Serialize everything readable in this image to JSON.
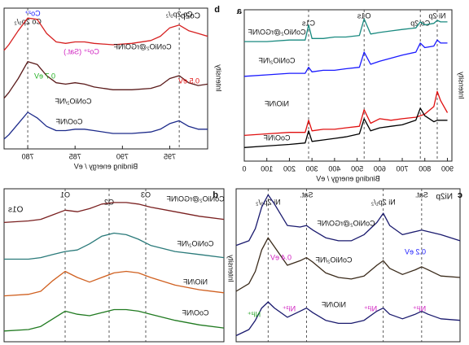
{
  "chart_data": [
    {
      "type": "line",
      "panel_label": "a",
      "xlabel": "Binding energy / eV",
      "ylabel": "Intensity",
      "x": [
        900,
        870,
        855,
        840,
        800,
        780,
        760,
        700,
        650,
        600,
        560,
        531,
        510,
        450,
        400,
        350,
        300,
        285,
        270,
        200,
        100,
        0
      ],
      "xlim": [
        920,
        0
      ],
      "xticks": [
        900,
        800,
        700,
        600,
        500,
        400,
        300,
        200,
        100,
        0
      ],
      "ylim": [
        0,
        100
      ],
      "series": [
        {
          "name": "CoNiO₂@rGO/NF",
          "color": "#1a8a80",
          "values": [
            92,
            92,
            93,
            91,
            90,
            92,
            88,
            87,
            86,
            85,
            84,
            94,
            83,
            82,
            82,
            81,
            81,
            90,
            80,
            80,
            79,
            79
          ]
        },
        {
          "name": "CoNiO₂/NF",
          "color": "#1a1aff",
          "values": [
            78,
            78,
            80,
            76,
            75,
            78,
            72,
            70,
            68,
            66,
            64,
            72,
            62,
            61,
            60,
            60,
            59,
            62,
            58,
            58,
            57,
            56
          ]
        },
        {
          "name": "NiO/NF",
          "color": "#e01010",
          "values": [
            32,
            40,
            46,
            36,
            31,
            30,
            29,
            28,
            27,
            28,
            25,
            34,
            23,
            22,
            21,
            21,
            20,
            27,
            19,
            19,
            18,
            17
          ]
        },
        {
          "name": "CoO/NF",
          "color": "#000000",
          "values": [
            27,
            27,
            27,
            26,
            30,
            35,
            27,
            24,
            23,
            22,
            20,
            28,
            18,
            16,
            15,
            14,
            13,
            20,
            12,
            11,
            10,
            9
          ]
        }
      ],
      "annotations": [
        {
          "x": 855,
          "label": "Ni 2p"
        },
        {
          "x": 780,
          "label": "Co 2p"
        },
        {
          "x": 531,
          "label": "O1s"
        },
        {
          "x": 285,
          "label": "C1s"
        }
      ]
    },
    {
      "type": "line",
      "panel_label": "b",
      "title": "Co2p",
      "xlabel": "Binding energy / eV",
      "ylabel": "Intensity",
      "x": [
        799,
        798,
        797,
        796,
        795,
        794,
        793,
        791,
        789,
        787,
        786,
        785,
        784,
        783,
        782,
        781,
        780,
        779,
        778,
        777.5
      ],
      "xlim": [
        799,
        777.5
      ],
      "xticks": [
        795,
        790,
        785,
        780
      ],
      "ylim": [
        0,
        100
      ],
      "series": [
        {
          "name": "CoNiO₂@rGO/NF",
          "color": "#d62020",
          "values": [
            80,
            82,
            84,
            88,
            86,
            80,
            77,
            75,
            74,
            75,
            76,
            76,
            75,
            76,
            82,
            92,
            93,
            84,
            74,
            70
          ]
        },
        {
          "name": "CoNiO₂/NF",
          "color": "#5a1a1a",
          "values": [
            46,
            45,
            47,
            52,
            50,
            45,
            43,
            42,
            42,
            44,
            46,
            47,
            46,
            47,
            52,
            60,
            62,
            50,
            40,
            36
          ]
        },
        {
          "name": "CoO/NF",
          "color": "#1c2a8a",
          "values": [
            14,
            14,
            16,
            20,
            18,
            14,
            12,
            11,
            11,
            13,
            14,
            14,
            13,
            13,
            16,
            22,
            26,
            18,
            10,
            7
          ]
        }
      ],
      "annotations": [
        {
          "x": 796,
          "label": "Co 2p₁/₂"
        },
        {
          "x": 780,
          "label": "Co 2p₃/₂"
        }
      ],
      "notes": [
        {
          "text": "Co²⁺",
          "color": "#1a1aff"
        },
        {
          "text": "Co²⁺ (Sat.)",
          "color": "#d020c0"
        },
        {
          "text": "0.7 eV",
          "color": "#20b020"
        },
        {
          "text": "0.5 eV",
          "color": "#e01010"
        }
      ]
    },
    {
      "type": "line",
      "panel_label": "c",
      "title": "Ni2p",
      "x": [
        885,
        882,
        880,
        879,
        878,
        876,
        874,
        873,
        872,
        870,
        868,
        866,
        864,
        862,
        861,
        860,
        858,
        856,
        855,
        854,
        853,
        852,
        850
      ],
      "xlim": [
        885,
        850
      ],
      "ylim": [
        0,
        100
      ],
      "series": [
        {
          "name": "CoNiO₂@rGO/NF",
          "color": "#1a1a6e",
          "values": [
            66,
            70,
            72,
            73,
            72,
            70,
            76,
            84,
            78,
            70,
            66,
            66,
            68,
            73,
            76,
            75,
            76,
            90,
            96,
            88,
            74,
            66,
            63
          ]
        },
        {
          "name": "CoNiO₂/NF",
          "color": "#3a2a1a",
          "values": [
            42,
            43,
            47,
            49,
            47,
            44,
            48,
            53,
            50,
            43,
            41,
            42,
            45,
            52,
            55,
            53,
            50,
            62,
            68,
            60,
            46,
            38,
            33
          ]
        },
        {
          "name": "NiO/NF",
          "color": "#1a1a6e",
          "values": [
            14,
            15,
            18,
            20,
            18,
            15,
            18,
            22,
            20,
            14,
            12,
            12,
            14,
            19,
            22,
            20,
            16,
            22,
            26,
            22,
            14,
            8,
            4
          ]
        }
      ],
      "annotations": [
        {
          "x": 879,
          "label": "Sat."
        },
        {
          "x": 873,
          "label": "Ni 2p₁/₂"
        },
        {
          "x": 861,
          "label": "Sat."
        },
        {
          "x": 855,
          "label": "Ni 2p₃/₂"
        }
      ],
      "notes": [
        {
          "text": "0.4 eV",
          "color": "#d020c0"
        },
        {
          "text": "0.2 eV",
          "color": "#1a1aff"
        },
        {
          "text": "Ni²⁺",
          "color": "#20a020"
        },
        {
          "text": "Ni³⁺",
          "color": "#d020c0"
        },
        {
          "text": "Ni³⁺",
          "color": "#d020c0"
        },
        {
          "text": "Ni²⁺",
          "color": "#d020c0"
        }
      ]
    },
    {
      "type": "line",
      "panel_label": "d",
      "title": "O1s",
      "ylabel": "Intensity",
      "x": [
        536,
        535,
        534,
        533,
        532.5,
        532,
        531.5,
        531,
        530.5,
        530,
        529.5,
        529,
        528.5,
        528,
        527
      ],
      "xlim": [
        536,
        527
      ],
      "ylim": [
        0,
        100
      ],
      "series": [
        {
          "name": "CoNiO₂@rGO/NF",
          "color": "#7a2020",
          "values": [
            80,
            82,
            85,
            88,
            90,
            91,
            91,
            90,
            87,
            85,
            86,
            83,
            80,
            79,
            78
          ]
        },
        {
          "name": "CoNiO₂/NF",
          "color": "#2a7a7a",
          "values": [
            55,
            57,
            59,
            63,
            67,
            70,
            71,
            69,
            64,
            60,
            59,
            57,
            55,
            54,
            54
          ]
        },
        {
          "name": "NiO/NF",
          "color": "#d06020",
          "values": [
            32,
            34,
            37,
            42,
            45,
            46,
            45,
            42,
            39,
            42,
            46,
            40,
            33,
            31,
            30
          ]
        },
        {
          "name": "CoO/NF",
          "color": "#207a20",
          "values": [
            9,
            11,
            14,
            18,
            20,
            21,
            21,
            19,
            17,
            18,
            20,
            15,
            10,
            8,
            7
          ]
        }
      ],
      "annotations": [
        {
          "x": 532.8,
          "label": "O3"
        },
        {
          "x": 531.3,
          "label": "O2"
        },
        {
          "x": 529.5,
          "label": "O1"
        }
      ]
    }
  ]
}
